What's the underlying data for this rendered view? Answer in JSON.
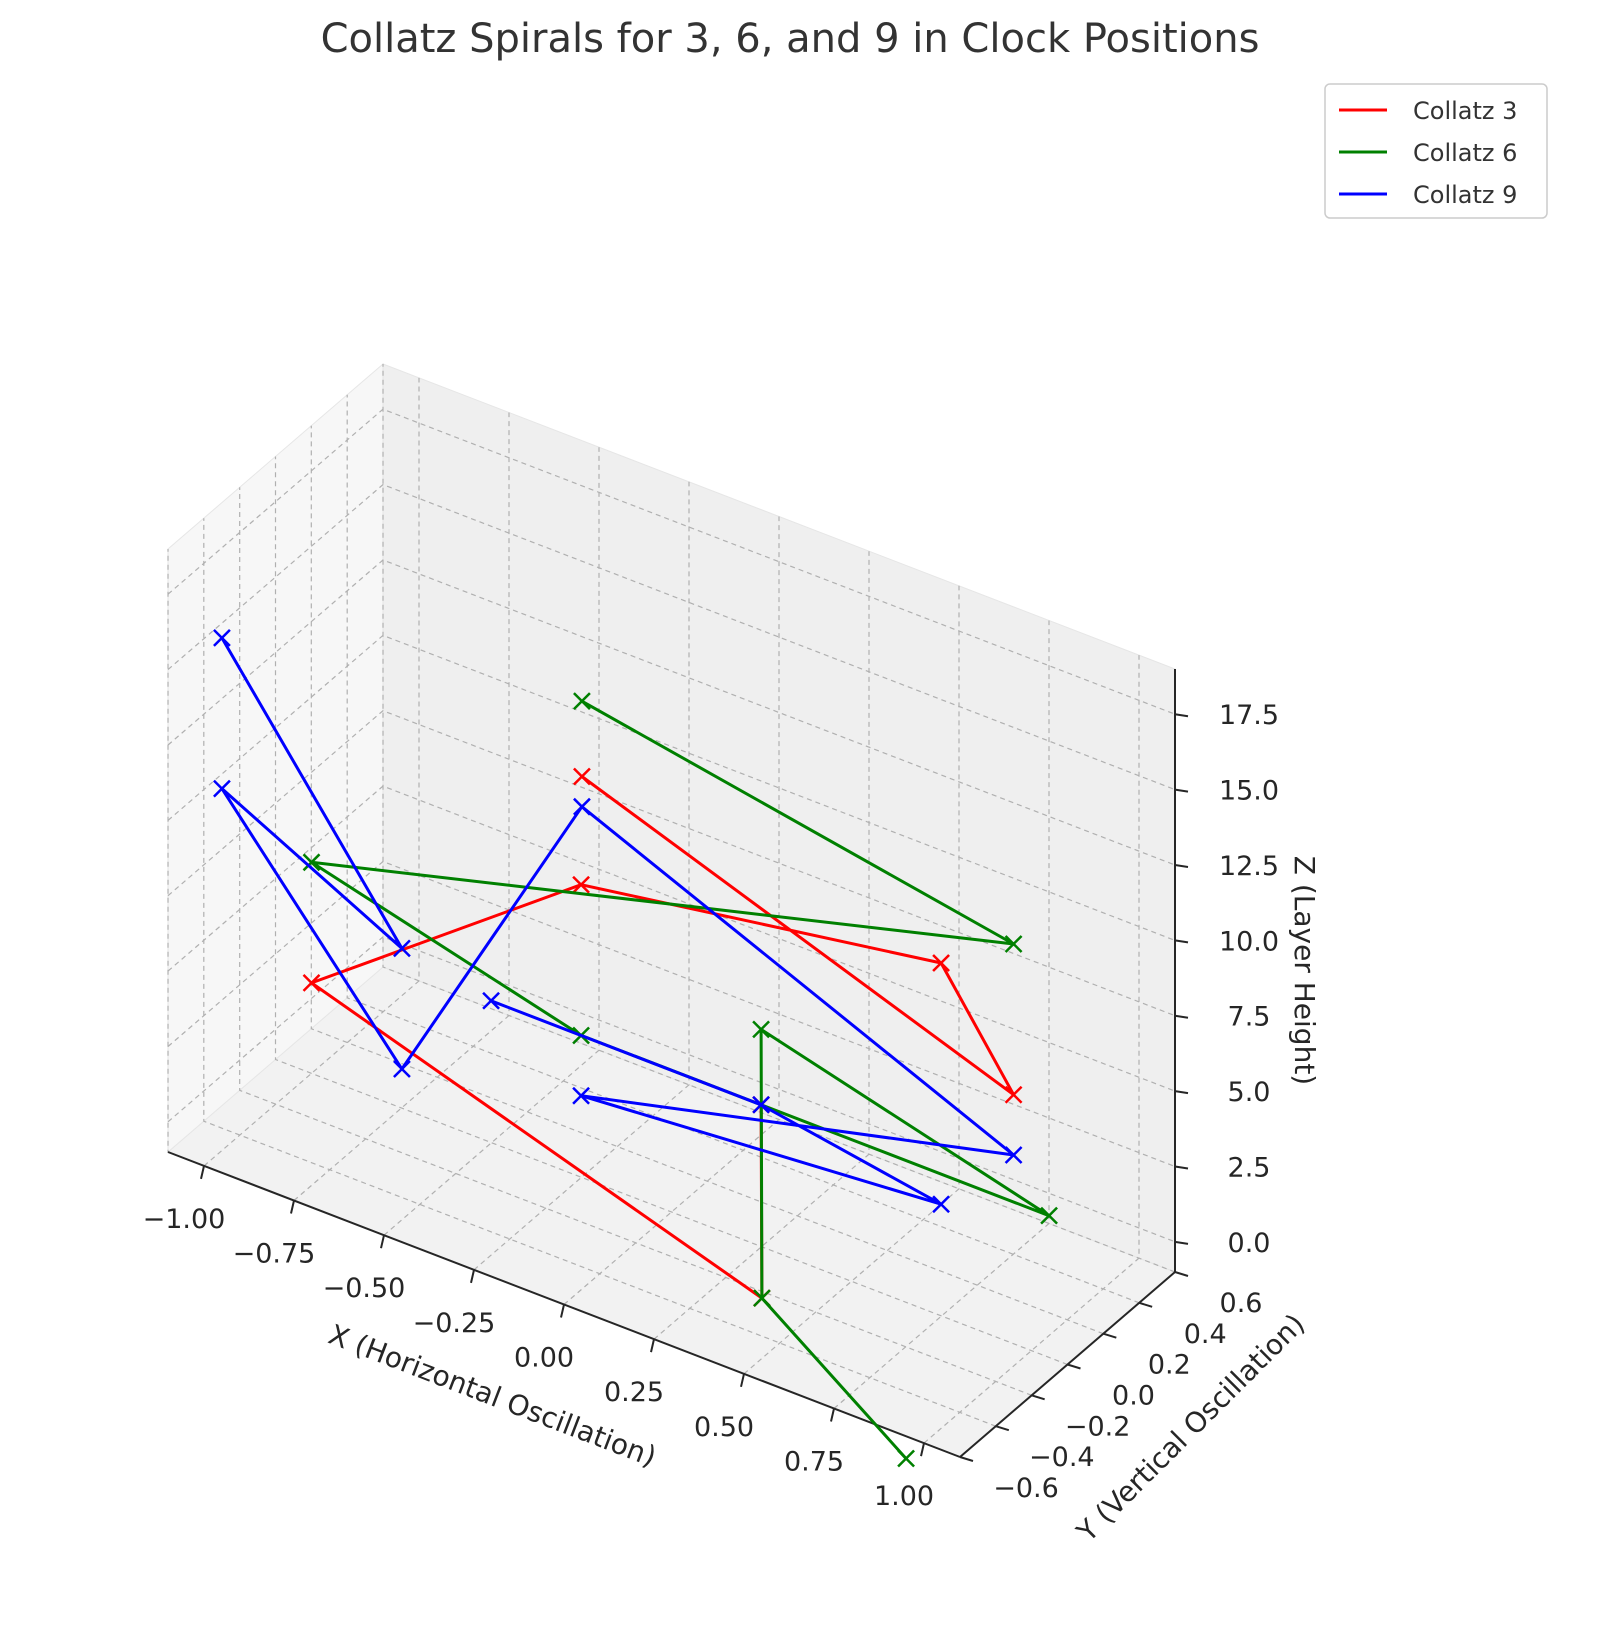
{
  "chart_data": {
    "type": "line",
    "projection": "3d",
    "title": "Collatz Spirals for 3, 6, and 9 in Clock Positions",
    "xlabel": "X (Horizontal Oscillation)",
    "ylabel": "Y (Vertical Oscillation)",
    "zlabel": "Z (Layer Height)",
    "xlim": [
      -1.1,
      1.1
    ],
    "ylim": [
      -0.6,
      0.6
    ],
    "zlim": [
      -1,
      19
    ],
    "xticks": [
      "−1.00",
      "−0.75",
      "−0.50",
      "−0.25",
      "0.00",
      "0.25",
      "0.50",
      "0.75",
      "1.00"
    ],
    "yticks": [
      "−0.6",
      "−0.4",
      "−0.2",
      "0.0",
      "0.2",
      "0.4",
      "0.6"
    ],
    "zticks": [
      "0.0",
      "2.5",
      "5.0",
      "7.5",
      "10.0",
      "12.5",
      "15.0",
      "17.5"
    ],
    "grid": true,
    "marker": "x",
    "legend_position": "top-right",
    "series": [
      {
        "name": "Collatz 3",
        "color": "#ff0000",
        "points": [
          {
            "x": 0.0,
            "y": 0.5,
            "z": 0
          },
          {
            "x": 0.5,
            "y": -0.5,
            "z": 1
          },
          {
            "x": -1.0,
            "y": 0.0,
            "z": 2
          },
          {
            "x": -0.5,
            "y": 0.5,
            "z": 5
          },
          {
            "x": 0.5,
            "y": 0.5,
            "z": 7
          },
          {
            "x": 1.0,
            "y": -0.1,
            "z": 8
          },
          {
            "x": 0.0,
            "y": -0.5,
            "z": 16
          }
        ]
      },
      {
        "name": "Collatz 6",
        "color": "#008000",
        "points": [
          {
            "x": 0.0,
            "y": -0.5,
            "z": 18.5
          },
          {
            "x": 1.0,
            "y": -0.1,
            "z": 13
          },
          {
            "x": -1.0,
            "y": 0.0,
            "z": 6
          },
          {
            "x": -0.5,
            "y": 0.5,
            "z": 0
          },
          {
            "x": 0.8,
            "y": 0.5,
            "z": 0
          },
          {
            "x": 0.0,
            "y": 0.5,
            "z": 2.5
          },
          {
            "x": 0.5,
            "y": -0.5,
            "z": 1
          },
          {
            "x": 1.0,
            "y": -0.7,
            "z": -1
          }
        ]
      },
      {
        "name": "Collatz 9",
        "color": "#0000ff",
        "points": [
          {
            "x": -1.0,
            "y": -0.5,
            "z": 16
          },
          {
            "x": -0.5,
            "y": -0.5,
            "z": 8
          },
          {
            "x": -1.0,
            "y": -0.5,
            "z": 11
          },
          {
            "x": -0.5,
            "y": -0.5,
            "z": 4
          },
          {
            "x": 0.0,
            "y": -0.5,
            "z": 15
          },
          {
            "x": 1.0,
            "y": -0.1,
            "z": 6
          },
          {
            "x": -0.5,
            "y": 0.5,
            "z": -2
          },
          {
            "x": 0.5,
            "y": 0.5,
            "z": -1
          },
          {
            "x": 0.0,
            "y": 0.5,
            "z": 0
          },
          {
            "x": -0.75,
            "y": 0.5,
            "z": 0
          }
        ]
      }
    ]
  }
}
